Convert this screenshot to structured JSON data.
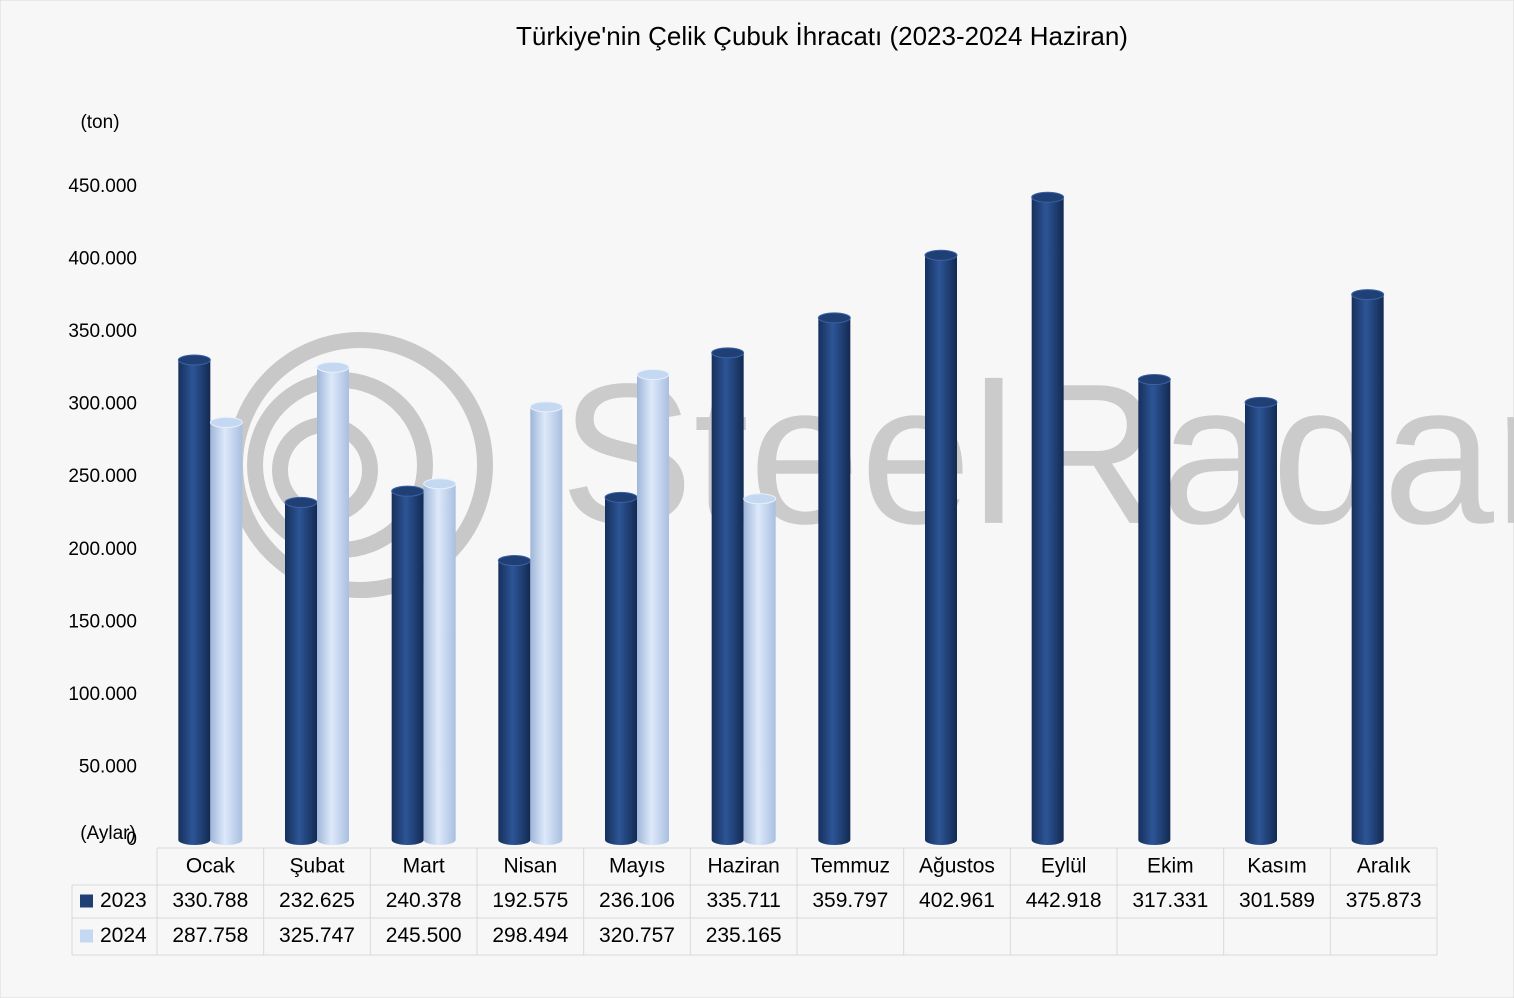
{
  "chart_data": {
    "type": "bar",
    "title": "Türkiye'nin Çelik Çubuk İhracatı (2023-2024 Haziran)",
    "y_label": "(ton)",
    "x_label": "(Aylar)",
    "watermark": "SteelRadar",
    "categories": [
      "Ocak",
      "Şubat",
      "Mart",
      "Nisan",
      "Mayıs",
      "Haziran",
      "Temmuz",
      "Ağustos",
      "Eylül",
      "Ekim",
      "Kasım",
      "Aralık"
    ],
    "series": [
      {
        "name": "2023",
        "color": "#1f3f75",
        "values": [
          330788,
          232625,
          240378,
          192575,
          236106,
          335711,
          359797,
          402961,
          442918,
          317331,
          301589,
          375873
        ],
        "value_labels": [
          "330.788",
          "232.625",
          "240.378",
          "192.575",
          "236.106",
          "335.711",
          "359.797",
          "402.961",
          "442.918",
          "317.331",
          "301.589",
          "375.873"
        ]
      },
      {
        "name": "2024",
        "color": "#c5d8f2",
        "values": [
          287758,
          325747,
          245500,
          298494,
          320757,
          235165,
          null,
          null,
          null,
          null,
          null,
          null
        ],
        "value_labels": [
          "287.758",
          "325.747",
          "245.500",
          "298.494",
          "320.757",
          "235.165",
          null,
          null,
          null,
          null,
          null,
          null
        ]
      }
    ],
    "ylim": [
      0,
      450000
    ],
    "yticks": [
      0,
      {
        "value": 50000,
        "label": "50.000"
      },
      {
        "value": 100000,
        "label": "100.000"
      },
      {
        "value": 150000,
        "label": "150.000"
      },
      {
        "value": 200000,
        "label": "200.000"
      },
      {
        "value": 250000,
        "label": "250.000"
      },
      {
        "value": 300000,
        "label": "300.000"
      },
      {
        "value": 350000,
        "label": "350.000"
      },
      {
        "value": 400000,
        "label": "400.000"
      },
      {
        "value": 450000,
        "label": "450.000"
      }
    ],
    "grid": false
  }
}
